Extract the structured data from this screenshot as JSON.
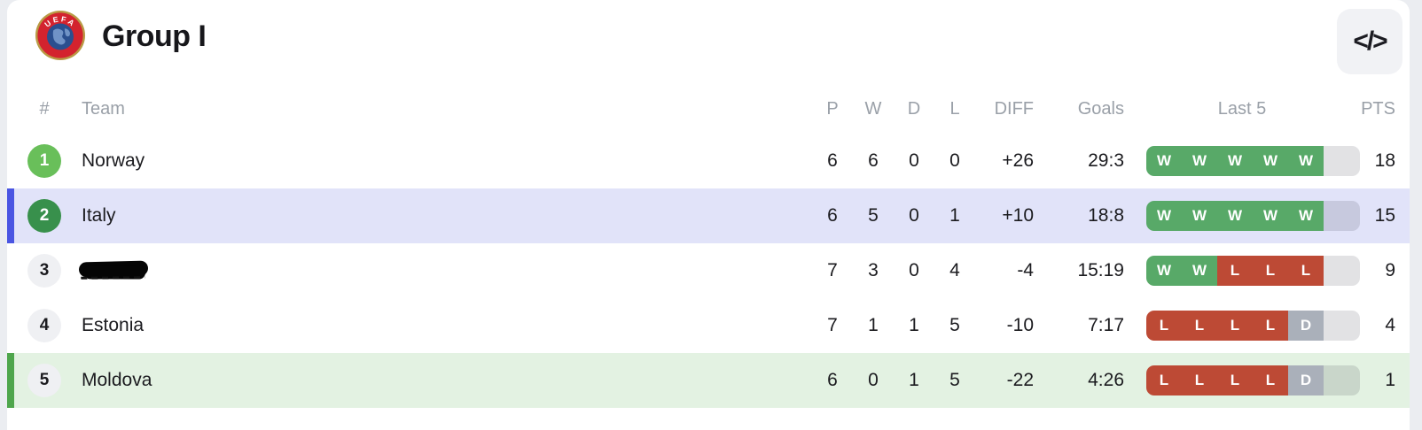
{
  "header": {
    "title": "Group I",
    "logo_text": "UEFA",
    "embed_icon": "</>"
  },
  "table": {
    "columns": [
      "#",
      "Team",
      "P",
      "W",
      "D",
      "L",
      "DIFF",
      "Goals",
      "Last 5",
      "PTS"
    ],
    "rows": [
      {
        "rank": "1",
        "team": "Norway",
        "redacted": false,
        "rank_badge": "rank-green-light",
        "row_style": "row-plain",
        "p": "6",
        "w": "6",
        "d": "0",
        "l": "0",
        "diff": "+26",
        "goals": "29:3",
        "last5": [
          "W",
          "W",
          "W",
          "W",
          "W"
        ],
        "pts": "18"
      },
      {
        "rank": "2",
        "team": "Italy",
        "redacted": false,
        "rank_badge": "rank-green-dark",
        "row_style": "row-promotion",
        "p": "6",
        "w": "5",
        "d": "0",
        "l": "1",
        "diff": "+10",
        "goals": "18:8",
        "last5": [
          "W",
          "W",
          "W",
          "W",
          "W"
        ],
        "pts": "15"
      },
      {
        "rank": "3",
        "team": "Israel",
        "redacted": true,
        "rank_badge": "rank-neutral",
        "row_style": "row-plain",
        "p": "7",
        "w": "3",
        "d": "0",
        "l": "4",
        "diff": "-4",
        "goals": "15:19",
        "last5": [
          "W",
          "W",
          "L",
          "L",
          "L"
        ],
        "pts": "9"
      },
      {
        "rank": "4",
        "team": "Estonia",
        "redacted": false,
        "rank_badge": "rank-neutral",
        "row_style": "row-plain",
        "p": "7",
        "w": "1",
        "d": "1",
        "l": "5",
        "diff": "-10",
        "goals": "7:17",
        "last5": [
          "L",
          "L",
          "L",
          "L",
          "D"
        ],
        "pts": "4"
      },
      {
        "rank": "5",
        "team": "Moldova",
        "redacted": false,
        "rank_badge": "rank-neutral",
        "row_style": "row-playoff",
        "p": "6",
        "w": "0",
        "d": "1",
        "l": "5",
        "diff": "-22",
        "goals": "4:26",
        "last5": [
          "L",
          "L",
          "L",
          "L",
          "D"
        ],
        "pts": "1"
      }
    ]
  },
  "colors": {
    "win": "#58a968",
    "loss": "#bd4a35",
    "draw": "#aab0ba",
    "promotion_stripe": "#4a55e2",
    "promotion_row_bg": "#e1e3f9",
    "playoff_stripe": "#4fa64c",
    "playoff_row_bg": "#e3f2e2",
    "rank1_badge": "#69bf5a",
    "rank2_badge": "#38904c",
    "page_bg": "#ebedf1"
  }
}
